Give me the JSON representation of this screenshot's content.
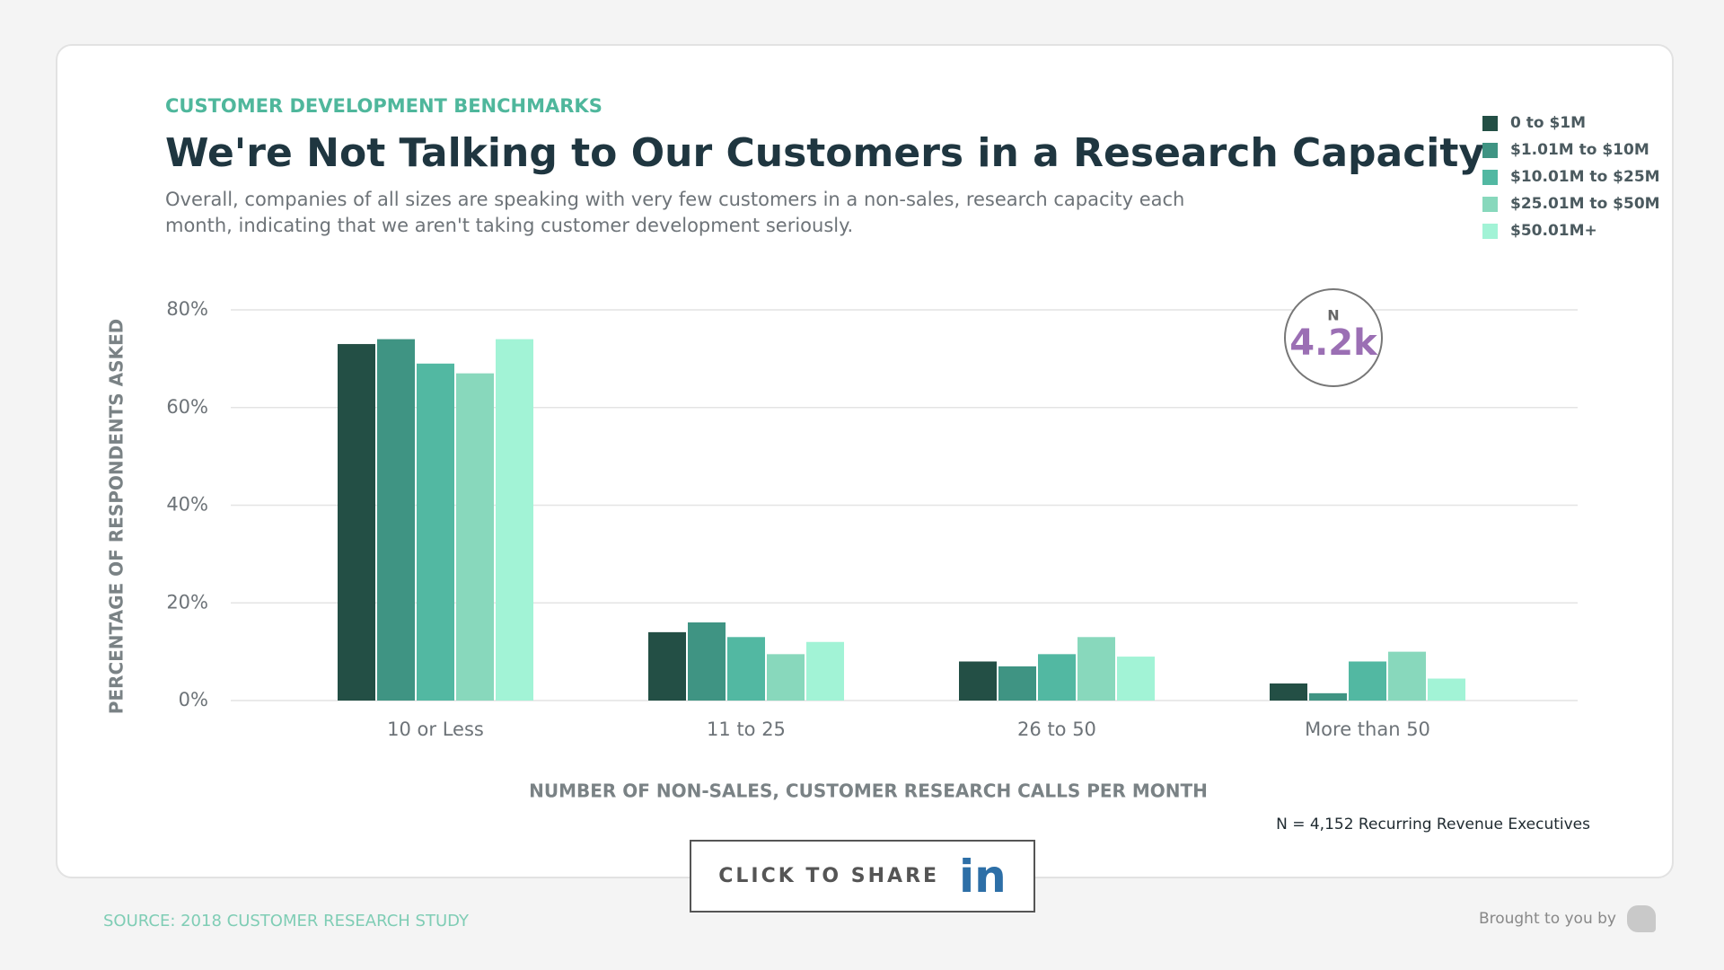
{
  "chart_data": {
    "type": "bar",
    "kicker": "CUSTOMER DEVELOPMENT BENCHMARKS",
    "title": "We're Not Talking to Our Customers in a Research Capacity",
    "subtitle": "Overall, companies of all sizes are speaking with very few customers in a non-sales, research capacity each month, indicating that we aren't taking customer development seriously.",
    "categories": [
      "10 or Less",
      "11 to 25",
      "26 to 50",
      "More than 50"
    ],
    "series": [
      {
        "name": "0 to $1M",
        "color": "#234f45",
        "values": [
          73,
          14,
          8,
          3.5
        ]
      },
      {
        "name": "$1.01M to $10M",
        "color": "#3f9483",
        "values": [
          74,
          16,
          7,
          1.5
        ]
      },
      {
        "name": "$10.01M to $25M",
        "color": "#52b8a2",
        "values": [
          69,
          13,
          9.5,
          8
        ]
      },
      {
        "name": "$25.01M to $50M",
        "color": "#88d8bc",
        "values": [
          67,
          9.5,
          13,
          10
        ]
      },
      {
        "name": "$50.01M+",
        "color": "#a2f3d6",
        "values": [
          74,
          12,
          9,
          4.5
        ]
      }
    ],
    "ylim": [
      0,
      80
    ],
    "yticks": [
      {
        "value": 0,
        "label": "0%"
      },
      {
        "value": 20,
        "label": "20%"
      },
      {
        "value": 40,
        "label": "40%"
      },
      {
        "value": 60,
        "label": "60%"
      },
      {
        "value": 80,
        "label": "80%"
      }
    ],
    "grid": true,
    "legend": "top-right",
    "xlabel": "NUMBER OF NON-SALES, CUSTOMER RESEARCH CALLS PER MONTH",
    "ylabel": "PERCENTAGE OF RESPONDENTS ASKED",
    "badge": {
      "label": "N",
      "value": "4.2k"
    },
    "note": "N = 4,152 Recurring Revenue Executives"
  },
  "share_button": {
    "text": "CLICK TO SHARE",
    "icon": "in"
  },
  "footer": {
    "source": "SOURCE: 2018 CUSTOMER RESEARCH STUDY",
    "credit": "Brought to you by"
  }
}
